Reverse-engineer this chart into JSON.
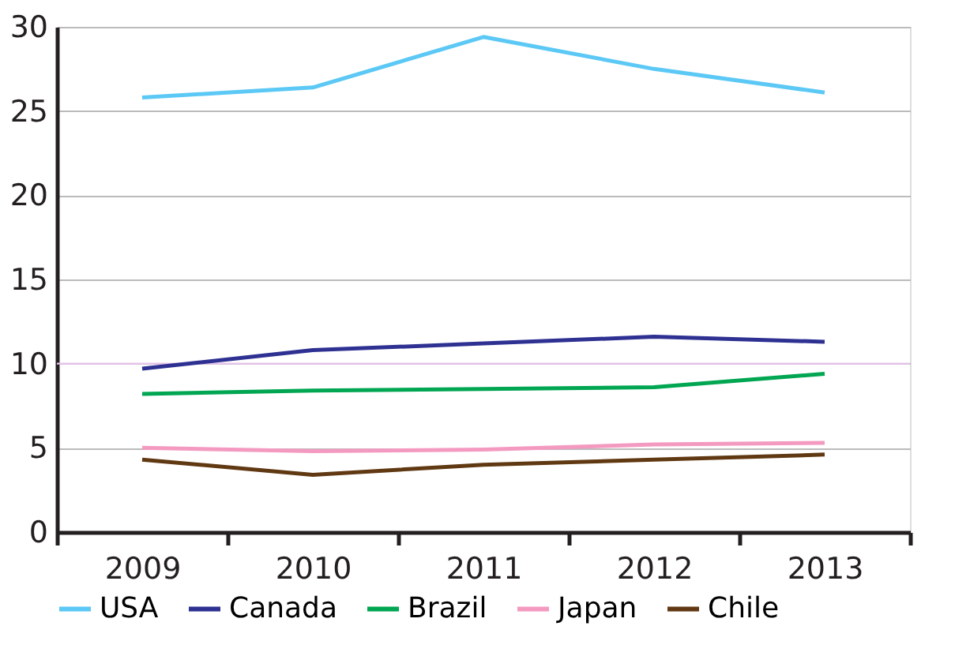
{
  "chart_data": {
    "type": "line",
    "categories": [
      "2009",
      "2010",
      "2011",
      "2012",
      "2013"
    ],
    "series": [
      {
        "name": "USA",
        "color": "#5bc8f5",
        "values": [
          25.8,
          26.4,
          29.4,
          27.5,
          26.1
        ]
      },
      {
        "name": "Canada",
        "color": "#2e3192",
        "values": [
          9.7,
          10.8,
          11.2,
          11.6,
          11.3
        ]
      },
      {
        "name": "Brazil",
        "color": "#00a651",
        "values": [
          8.2,
          8.4,
          8.5,
          8.6,
          9.4
        ]
      },
      {
        "name": "Japan",
        "color": "#f49ac1",
        "values": [
          5.0,
          4.8,
          4.9,
          5.2,
          5.3
        ]
      },
      {
        "name": "Chile",
        "color": "#603913",
        "values": [
          4.3,
          3.4,
          4.0,
          4.3,
          4.6
        ]
      }
    ],
    "ylim": [
      0,
      30
    ],
    "yticks": [
      0,
      5,
      10,
      15,
      20,
      25,
      30
    ],
    "grid": "y",
    "legend": "bottom",
    "marker": "none",
    "line_style": "solid",
    "ref_lines": [
      {
        "axis": "y",
        "value": 10,
        "color": "#e6c3ea"
      }
    ]
  }
}
